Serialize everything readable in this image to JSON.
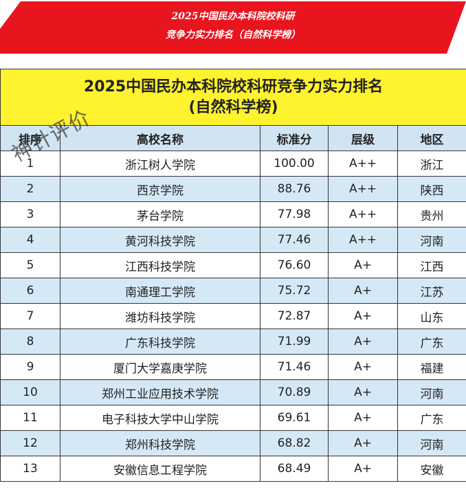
{
  "banner": {
    "lines": [
      "2025中国民办本科院校科研",
      "竞争力实力排名（自然科学榜）"
    ]
  },
  "table": {
    "title": [
      "2025中国民办本科院校科研竞争力实力排名",
      "(自然科学榜)"
    ],
    "header": [
      "排序",
      "高校名称",
      "标准分",
      "层级",
      "地区"
    ],
    "rows": [
      [
        "1",
        "浙江树人学院",
        "100.00",
        "A++",
        "浙江"
      ],
      [
        "2",
        "西京学院",
        "88.76",
        "A++",
        "陕西"
      ],
      [
        "3",
        "茅台学院",
        "77.98",
        "A++",
        "贵州"
      ],
      [
        "4",
        "黄河科技学院",
        "77.46",
        "A++",
        "河南"
      ],
      [
        "5",
        "江西科技学院",
        "76.60",
        "A+",
        "江西"
      ],
      [
        "6",
        "南通理工学院",
        "75.72",
        "A+",
        "江苏"
      ],
      [
        "7",
        "潍坊科技学院",
        "72.87",
        "A+",
        "山东"
      ],
      [
        "8",
        "广东科技学院",
        "71.99",
        "A+",
        "广东"
      ],
      [
        "9",
        "厦门大学嘉庚学院",
        "71.46",
        "A+",
        "福建"
      ],
      [
        "10",
        "郑州工业应用技术学院",
        "70.89",
        "A+",
        "河南"
      ],
      [
        "11",
        "电子科技大学中山学院",
        "69.61",
        "A+",
        "广东"
      ],
      [
        "12",
        "郑州科技学院",
        "68.82",
        "A+",
        "河南"
      ],
      [
        "13",
        "安徽信息工程学院",
        "68.49",
        "A+",
        "安徽"
      ]
    ]
  },
  "watermark": "神针评价"
}
